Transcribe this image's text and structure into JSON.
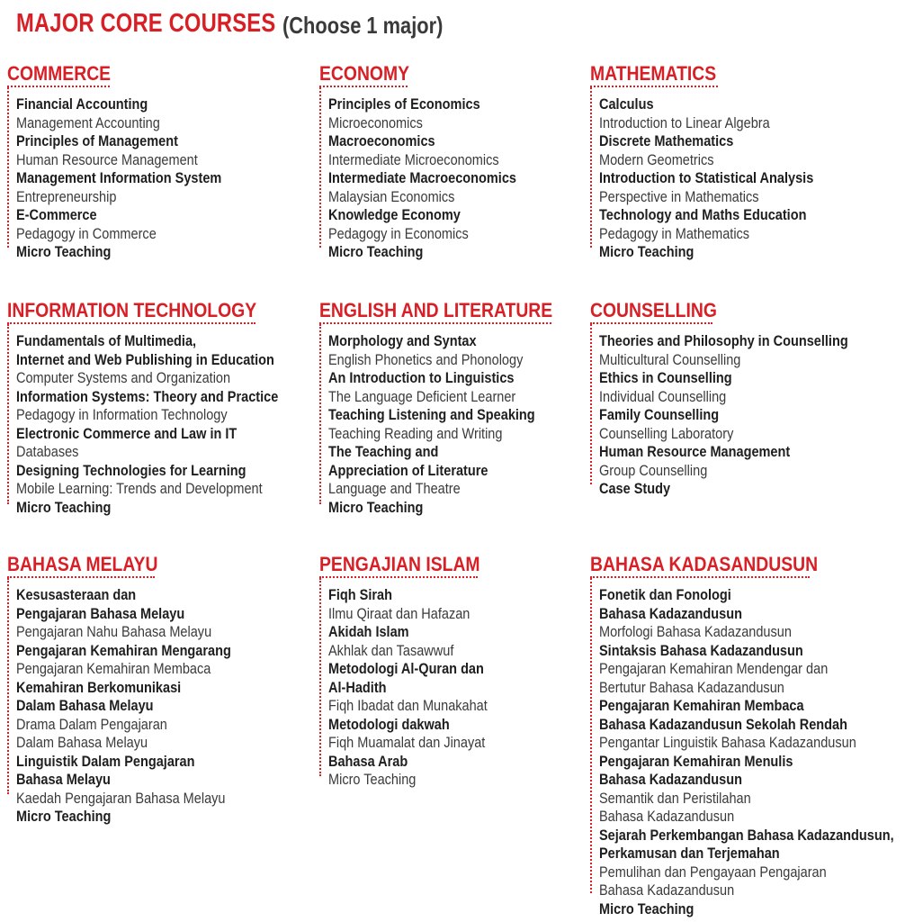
{
  "header": {
    "title": "MAJOR CORE COURSES",
    "subtitle": "(Choose 1 major)"
  },
  "colors": {
    "accent": "#d91f26",
    "text": "#2a2a2a"
  },
  "sections": [
    {
      "title": "COMMERCE",
      "courses": [
        {
          "text": "Financial Accounting",
          "bold": true
        },
        {
          "text": "Management Accounting",
          "bold": false
        },
        {
          "text": "Principles of Management",
          "bold": true
        },
        {
          "text": "Human Resource Management",
          "bold": false
        },
        {
          "text": "Management Information System",
          "bold": true
        },
        {
          "text": "Entrepreneurship",
          "bold": false
        },
        {
          "text": "E-Commerce",
          "bold": true
        },
        {
          "text": "Pedagogy in Commerce",
          "bold": false
        },
        {
          "text": "Micro Teaching",
          "bold": true
        }
      ]
    },
    {
      "title": "ECONOMY",
      "courses": [
        {
          "text": "Principles of Economics",
          "bold": true
        },
        {
          "text": "Microeconomics",
          "bold": false
        },
        {
          "text": "Macroeconomics",
          "bold": true
        },
        {
          "text": "Intermediate Microeconomics",
          "bold": false
        },
        {
          "text": "Intermediate Macroeconomics",
          "bold": true
        },
        {
          "text": "Malaysian Economics",
          "bold": false
        },
        {
          "text": "Knowledge Economy",
          "bold": true
        },
        {
          "text": "Pedagogy in Economics",
          "bold": false
        },
        {
          "text": "Micro Teaching",
          "bold": true
        }
      ]
    },
    {
      "title": "MATHEMATICS",
      "courses": [
        {
          "text": "Calculus",
          "bold": true
        },
        {
          "text": "Introduction to Linear Algebra",
          "bold": false
        },
        {
          "text": "Discrete Mathematics",
          "bold": true
        },
        {
          "text": "Modern Geometrics",
          "bold": false
        },
        {
          "text": "Introduction to Statistical Analysis",
          "bold": true
        },
        {
          "text": "Perspective in Mathematics",
          "bold": false
        },
        {
          "text": "Technology and Maths Education",
          "bold": true
        },
        {
          "text": "Pedagogy in Mathematics",
          "bold": false
        },
        {
          "text": "Micro Teaching",
          "bold": true
        }
      ]
    },
    {
      "title": "INFORMATION TECHNOLOGY",
      "courses": [
        {
          "text": "Fundamentals of Multimedia,",
          "bold": true
        },
        {
          "text": "Internet and Web Publishing in Education",
          "bold": true
        },
        {
          "text": "Computer Systems and Organization",
          "bold": false
        },
        {
          "text": "Information Systems: Theory and Practice",
          "bold": true
        },
        {
          "text": "Pedagogy in Information Technology",
          "bold": false
        },
        {
          "text": "Electronic Commerce and Law in IT",
          "bold": true
        },
        {
          "text": "Databases",
          "bold": false
        },
        {
          "text": "Designing Technologies for Learning",
          "bold": true
        },
        {
          "text": "Mobile Learning: Trends and Development",
          "bold": false
        },
        {
          "text": "Micro Teaching",
          "bold": true
        }
      ]
    },
    {
      "title": "ENGLISH AND LITERATURE",
      "courses": [
        {
          "text": "Morphology and Syntax",
          "bold": true
        },
        {
          "text": "English Phonetics and Phonology",
          "bold": false
        },
        {
          "text": "An Introduction to Linguistics",
          "bold": true
        },
        {
          "text": "The Language Deficient Learner",
          "bold": false
        },
        {
          "text": "Teaching Listening and Speaking",
          "bold": true
        },
        {
          "text": "Teaching Reading and Writing",
          "bold": false
        },
        {
          "text": "The Teaching and",
          "bold": true
        },
        {
          "text": "Appreciation of Literature",
          "bold": true
        },
        {
          "text": "Language and Theatre",
          "bold": false
        },
        {
          "text": "Micro Teaching",
          "bold": true
        }
      ]
    },
    {
      "title": "COUNSELLING",
      "courses": [
        {
          "text": "Theories and Philosophy in Counselling",
          "bold": true
        },
        {
          "text": "Multicultural Counselling",
          "bold": false
        },
        {
          "text": "Ethics in Counselling",
          "bold": true
        },
        {
          "text": "Individual Counselling",
          "bold": false
        },
        {
          "text": "Family Counselling",
          "bold": true
        },
        {
          "text": "Counselling Laboratory",
          "bold": false
        },
        {
          "text": "Human Resource Management",
          "bold": true
        },
        {
          "text": "Group Counselling",
          "bold": false
        },
        {
          "text": "Case Study",
          "bold": true
        }
      ]
    },
    {
      "title": "BAHASA MELAYU",
      "courses": [
        {
          "text": "Kesusasteraan dan",
          "bold": true
        },
        {
          "text": "Pengajaran Bahasa Melayu",
          "bold": true
        },
        {
          "text": "Pengajaran Nahu Bahasa Melayu",
          "bold": false
        },
        {
          "text": "Pengajaran Kemahiran Mengarang",
          "bold": true
        },
        {
          "text": "Pengajaran Kemahiran Membaca",
          "bold": false
        },
        {
          "text": "Kemahiran Berkomunikasi",
          "bold": true
        },
        {
          "text": "Dalam Bahasa Melayu",
          "bold": true
        },
        {
          "text": "Drama Dalam Pengajaran",
          "bold": false
        },
        {
          "text": "Dalam Bahasa Melayu",
          "bold": false
        },
        {
          "text": "Linguistik Dalam Pengajaran",
          "bold": true
        },
        {
          "text": "Bahasa Melayu",
          "bold": true
        },
        {
          "text": "Kaedah Pengajaran Bahasa Melayu",
          "bold": false
        },
        {
          "text": "Micro Teaching",
          "bold": true
        }
      ]
    },
    {
      "title": "PENGAJIAN ISLAM",
      "courses": [
        {
          "text": "Fiqh Sirah",
          "bold": true
        },
        {
          "text": "Ilmu Qiraat dan Hafazan",
          "bold": false
        },
        {
          "text": "Akidah Islam",
          "bold": true
        },
        {
          "text": "Akhlak dan Tasawwuf",
          "bold": false
        },
        {
          "text": "Metodologi Al-Quran dan",
          "bold": true
        },
        {
          "text": "Al-Hadith",
          "bold": true
        },
        {
          "text": "Fiqh Ibadat dan Munakahat",
          "bold": false
        },
        {
          "text": "Metodologi dakwah",
          "bold": true
        },
        {
          "text": "Fiqh Muamalat dan Jinayat",
          "bold": false
        },
        {
          "text": "Bahasa Arab",
          "bold": true
        },
        {
          "text": "Micro Teaching",
          "bold": false
        }
      ]
    },
    {
      "title": "BAHASA KADASANDUSUN",
      "courses": [
        {
          "text": "Fonetik dan Fonologi",
          "bold": true
        },
        {
          "text": "Bahasa Kadazandusun",
          "bold": true
        },
        {
          "text": "Morfologi Bahasa Kadazandusun",
          "bold": false
        },
        {
          "text": "Sintaksis Bahasa Kadazandusun",
          "bold": true
        },
        {
          "text": "Pengajaran Kemahiran Mendengar dan",
          "bold": false
        },
        {
          "text": "Bertutur Bahasa Kadazandusun",
          "bold": false
        },
        {
          "text": "Pengajaran Kemahiran Membaca",
          "bold": true
        },
        {
          "text": "Bahasa Kadazandusun Sekolah Rendah",
          "bold": true
        },
        {
          "text": "Pengantar Linguistik Bahasa Kadazandusun",
          "bold": false
        },
        {
          "text": "Pengajaran Kemahiran Menulis",
          "bold": true
        },
        {
          "text": "Bahasa Kadazandusun",
          "bold": true
        },
        {
          "text": "Semantik dan Peristilahan",
          "bold": false
        },
        {
          "text": "Bahasa Kadazandusun",
          "bold": false
        },
        {
          "text": "Sejarah Perkembangan Bahasa Kadazandusun,",
          "bold": true
        },
        {
          "text": "Perkamusan dan Terjemahan",
          "bold": true
        },
        {
          "text": "Pemulihan dan Pengayaan Pengajaran",
          "bold": false
        },
        {
          "text": "Bahasa Kadazandusun",
          "bold": false
        },
        {
          "text": "Micro Teaching",
          "bold": true
        }
      ]
    }
  ]
}
